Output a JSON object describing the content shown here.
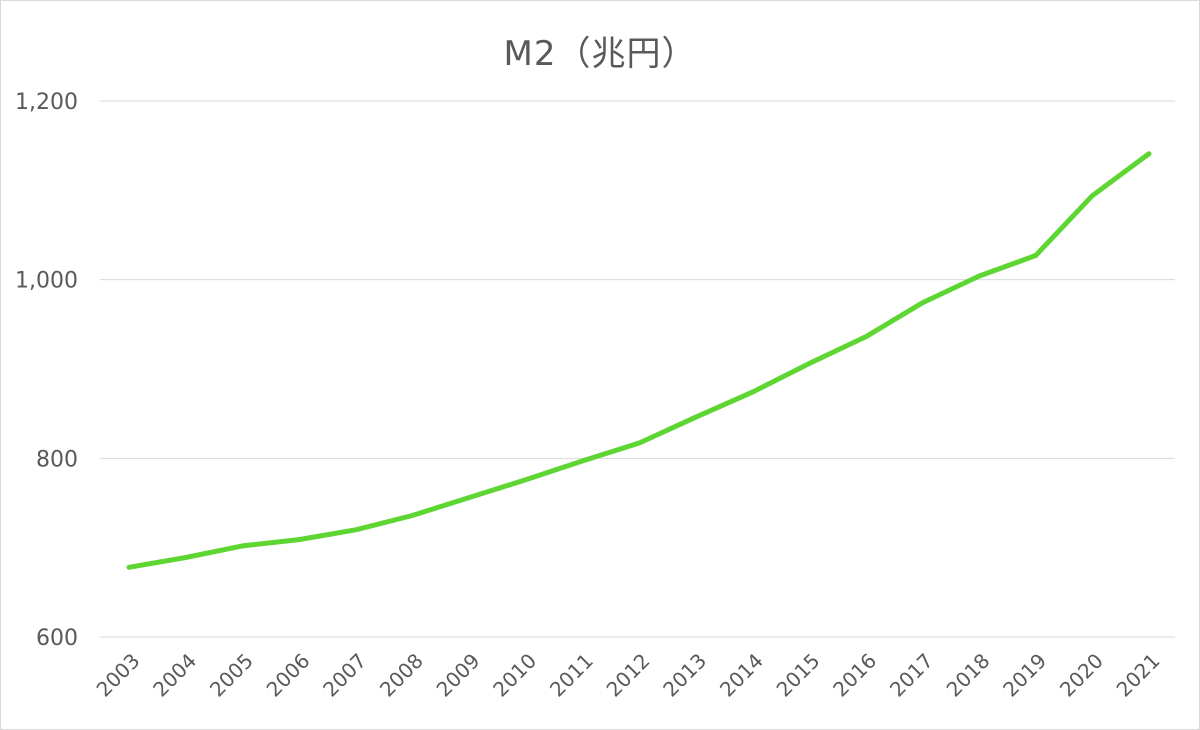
{
  "chart_data": {
    "type": "line",
    "title": "M2（兆円）",
    "xlabel": "",
    "ylabel": "",
    "ylim": [
      600,
      1200
    ],
    "yticks": [
      600,
      800,
      1000,
      1200
    ],
    "ytick_labels": [
      "600",
      "800",
      "1,000",
      "1,200"
    ],
    "grid": true,
    "legend": "none",
    "x": [
      "2003",
      "2004",
      "2005",
      "2006",
      "2007",
      "2008",
      "2009",
      "2010",
      "2011",
      "2012",
      "2013",
      "2014",
      "2015",
      "2016",
      "2017",
      "2018",
      "2019",
      "2020",
      "2021"
    ],
    "series": [
      {
        "color": "#5ed632",
        "values": [
          678,
          689,
          702,
          709,
          720,
          736,
          756,
          776,
          797,
          817,
          846,
          874,
          906,
          936,
          974,
          1004,
          1027,
          1094,
          1141
        ]
      }
    ]
  }
}
